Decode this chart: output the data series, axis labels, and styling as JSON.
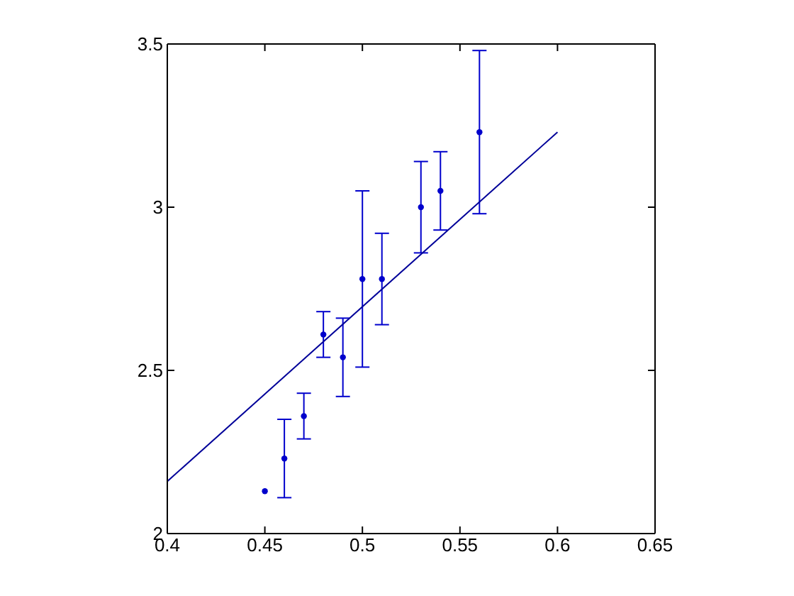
{
  "chart_data": {
    "type": "scatter",
    "x": [
      0.45,
      0.46,
      0.47,
      0.48,
      0.49,
      0.5,
      0.51,
      0.53,
      0.54,
      0.56
    ],
    "xlim": [
      0.4,
      0.65
    ],
    "xticks": [
      0.4,
      0.45,
      0.5,
      0.55,
      0.6,
      0.65
    ],
    "ylim": [
      2,
      3.5
    ],
    "yticks": [
      2,
      2.5,
      3,
      3.5
    ],
    "series": [
      {
        "color": "#0000cc",
        "marker": "circle",
        "values": [
          2.13,
          2.23,
          2.36,
          2.61,
          2.54,
          2.78,
          2.78,
          3.0,
          3.05,
          3.23
        ],
        "errors": [
          null,
          0.12,
          0.07,
          0.07,
          0.12,
          0.27,
          0.14,
          0.14,
          0.12,
          0.25
        ]
      },
      {
        "type": "line",
        "color": "#000099",
        "marker": "none",
        "line_style": "solid",
        "x": [
          0.4,
          0.6
        ],
        "values": [
          2.16,
          3.23
        ]
      }
    ]
  }
}
